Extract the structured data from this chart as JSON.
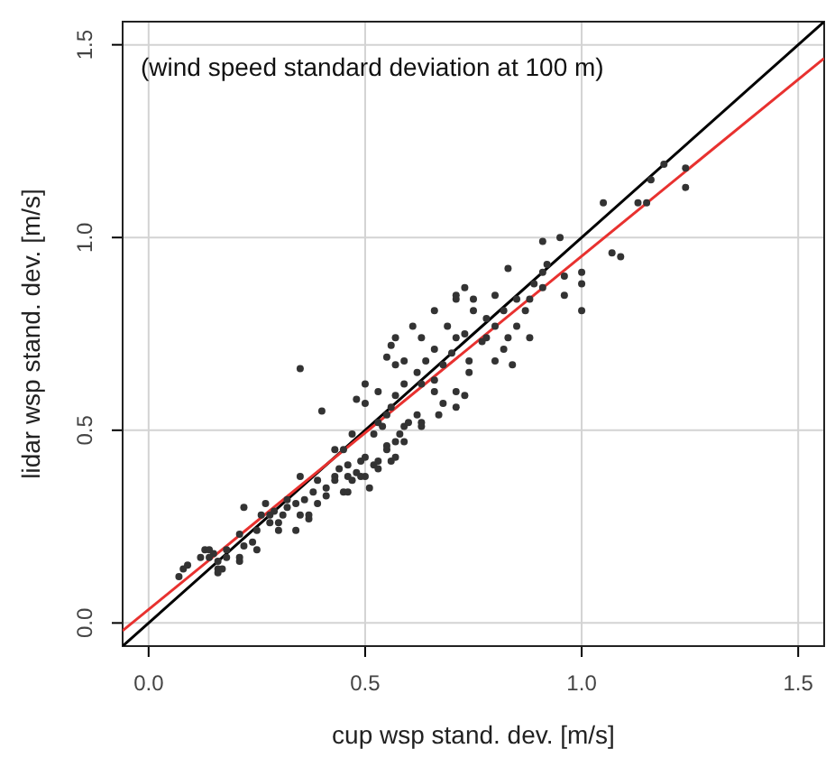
{
  "chart_data": {
    "type": "scatter",
    "xlabel": "cup wsp stand. dev.  [m/s]",
    "ylabel": "lidar wsp stand. dev.  [m/s]",
    "annotations": [
      "(wind speed standard deviation at 100 m)"
    ],
    "xlim": [
      -0.06,
      1.56
    ],
    "ylim": [
      -0.06,
      1.56
    ],
    "xticks": [
      {
        "value": 0,
        "label": "0.0"
      },
      {
        "value": 0.5,
        "label": "0.5"
      },
      {
        "value": 1,
        "label": "1.0"
      },
      {
        "value": 1.5,
        "label": "1.5"
      }
    ],
    "yticks": [
      {
        "value": 0,
        "label": "0.0"
      },
      {
        "value": 0.5,
        "label": "0.5"
      },
      {
        "value": 1,
        "label": "1.0"
      },
      {
        "value": 1.5,
        "label": "1.5"
      }
    ],
    "grid": true,
    "series": [
      {
        "type": "scatter",
        "marker": "circle",
        "color": "#333333",
        "x": [
          0.07,
          0.08,
          0.09,
          0.12,
          0.13,
          0.14,
          0.15,
          0.14,
          0.16,
          0.18,
          0.18,
          0.17,
          0.21,
          0.21,
          0.22,
          0.16,
          0.16,
          0.21,
          0.22,
          0.24,
          0.25,
          0.25,
          0.26,
          0.27,
          0.28,
          0.28,
          0.29,
          0.3,
          0.3,
          0.31,
          0.32,
          0.34,
          0.34,
          0.35,
          0.36,
          0.37,
          0.37,
          0.32,
          0.38,
          0.39,
          0.39,
          0.41,
          0.41,
          0.35,
          0.43,
          0.43,
          0.44,
          0.45,
          0.46,
          0.46,
          0.47,
          0.48,
          0.49,
          0.5,
          0.5,
          0.51,
          0.52,
          0.53,
          0.53,
          0.4,
          0.43,
          0.45,
          0.47,
          0.49,
          0.46,
          0.55,
          0.56,
          0.55,
          0.57,
          0.57,
          0.58,
          0.59,
          0.59,
          0.6,
          0.62,
          0.63,
          0.48,
          0.5,
          0.5,
          0.53,
          0.53,
          0.55,
          0.56,
          0.57,
          0.52,
          0.54,
          0.35,
          0.55,
          0.56,
          0.57,
          0.59,
          0.62,
          0.63,
          0.64,
          0.66,
          0.66,
          0.68,
          0.7,
          0.71,
          0.63,
          0.61,
          0.66,
          0.69,
          0.73,
          0.74,
          0.77,
          0.78,
          0.75,
          0.75,
          0.71,
          0.73,
          0.73,
          0.71,
          0.68,
          0.74,
          0.8,
          0.82,
          0.83,
          0.84,
          0.71,
          0.8,
          0.82,
          0.85,
          0.87,
          0.88,
          0.89,
          0.91,
          0.91,
          0.88,
          0.85,
          0.83,
          0.91,
          0.95,
          0.92,
          0.96,
          0.96,
          1.0,
          1.0,
          1.0,
          1.05,
          1.07,
          1.09,
          1.13,
          1.15,
          1.16,
          1.19,
          1.24,
          1.24,
          0.66,
          0.67,
          0.63,
          0.71,
          0.78,
          0.8,
          0.57,
          0.59
        ],
        "values": [
          0.12,
          0.14,
          0.15,
          0.17,
          0.19,
          0.19,
          0.18,
          0.17,
          0.16,
          0.17,
          0.19,
          0.14,
          0.16,
          0.17,
          0.2,
          0.14,
          0.13,
          0.23,
          0.3,
          0.21,
          0.19,
          0.24,
          0.28,
          0.31,
          0.28,
          0.26,
          0.29,
          0.26,
          0.24,
          0.28,
          0.3,
          0.31,
          0.24,
          0.28,
          0.32,
          0.27,
          0.28,
          0.32,
          0.34,
          0.31,
          0.37,
          0.35,
          0.33,
          0.38,
          0.38,
          0.37,
          0.4,
          0.34,
          0.38,
          0.41,
          0.37,
          0.39,
          0.42,
          0.38,
          0.43,
          0.35,
          0.41,
          0.4,
          0.42,
          0.55,
          0.45,
          0.45,
          0.49,
          0.38,
          0.34,
          0.45,
          0.42,
          0.46,
          0.47,
          0.43,
          0.49,
          0.51,
          0.47,
          0.52,
          0.54,
          0.52,
          0.58,
          0.62,
          0.57,
          0.6,
          0.52,
          0.54,
          0.56,
          0.59,
          0.49,
          0.51,
          0.66,
          0.69,
          0.72,
          0.74,
          0.68,
          0.65,
          0.62,
          0.68,
          0.71,
          0.63,
          0.67,
          0.7,
          0.74,
          0.74,
          0.77,
          0.81,
          0.77,
          0.75,
          0.68,
          0.73,
          0.79,
          0.81,
          0.84,
          0.84,
          0.87,
          0.59,
          0.6,
          0.57,
          0.65,
          0.68,
          0.71,
          0.74,
          0.67,
          0.85,
          0.85,
          0.81,
          0.77,
          0.81,
          0.84,
          0.88,
          0.87,
          0.91,
          0.74,
          0.84,
          0.92,
          0.99,
          1.0,
          0.93,
          0.85,
          0.9,
          0.88,
          0.81,
          0.91,
          1.09,
          0.96,
          0.95,
          1.09,
          1.09,
          1.15,
          1.19,
          1.13,
          1.18,
          0.6,
          0.54,
          0.51,
          0.56,
          0.74,
          0.77,
          0.67,
          0.62
        ]
      },
      {
        "type": "line",
        "color": "#000000",
        "x": [
          -0.06,
          1.56
        ],
        "values": [
          -0.06,
          1.56
        ]
      },
      {
        "type": "line",
        "color": "#e8312f",
        "x": [
          -0.06,
          1.56
        ],
        "values": [
          -0.02,
          1.465
        ]
      }
    ]
  }
}
